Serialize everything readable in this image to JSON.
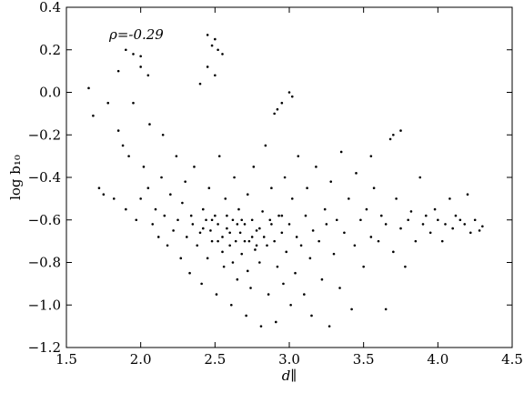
{
  "chart_data": {
    "type": "scatter",
    "annotation": "ρ=-0.29",
    "x_label": "d∥",
    "y_label": "log b₁₀",
    "color": "#000000",
    "xlim": [
      1.5,
      4.5
    ],
    "ylim": [
      -1.2,
      0.4
    ],
    "xticks": [
      1.5,
      {
        "value": 2,
        "label": "2.0"
      },
      2.5,
      {
        "value": 3,
        "label": "3.0"
      },
      3.5,
      {
        "value": 4,
        "label": "4.0"
      },
      4.5
    ],
    "yticks": [
      {
        "value": -1.2,
        "label": "−1.2"
      },
      {
        "value": -1,
        "label": "−1.0"
      },
      {
        "value": -0.8,
        "label": "−0.8"
      },
      {
        "value": -0.6,
        "label": "−0.6"
      },
      {
        "value": -0.4,
        "label": "−0.4"
      },
      {
        "value": -0.2,
        "label": "−0.2"
      },
      {
        "value": 0,
        "label": "0.0"
      },
      0.2,
      0.4
    ],
    "x": [
      1.65,
      1.95,
      2.0,
      2.45,
      2.48,
      2.5,
      2.52,
      2.55,
      2.45,
      2.5,
      2.4,
      1.85,
      1.9,
      2.0,
      2.05,
      3.0,
      2.95,
      2.9,
      3.02,
      2.92,
      1.68,
      1.72,
      1.75,
      1.78,
      1.82,
      1.85,
      1.88,
      1.9,
      1.92,
      1.95,
      1.97,
      2.0,
      2.02,
      2.05,
      2.06,
      2.08,
      2.1,
      2.12,
      2.14,
      2.15,
      2.16,
      2.18,
      2.2,
      2.22,
      2.24,
      2.25,
      2.27,
      2.28,
      2.3,
      2.31,
      2.33,
      2.34,
      2.35,
      2.36,
      2.38,
      2.4,
      2.41,
      2.42,
      2.44,
      2.45,
      2.46,
      2.47,
      2.48,
      2.5,
      2.51,
      2.52,
      2.53,
      2.55,
      2.56,
      2.57,
      2.58,
      2.6,
      2.61,
      2.62,
      2.63,
      2.64,
      2.65,
      2.66,
      2.67,
      2.68,
      2.7,
      2.71,
      2.72,
      2.73,
      2.74,
      2.75,
      2.76,
      2.77,
      2.78,
      2.8,
      2.81,
      2.82,
      2.83,
      2.84,
      2.85,
      2.86,
      2.87,
      2.88,
      2.9,
      2.91,
      2.92,
      2.93,
      2.95,
      2.96,
      2.97,
      2.98,
      3.0,
      3.01,
      3.02,
      3.04,
      3.05,
      3.06,
      3.08,
      3.1,
      3.11,
      3.12,
      3.14,
      3.15,
      3.16,
      3.18,
      3.2,
      3.22,
      3.24,
      3.25,
      3.27,
      3.28,
      3.3,
      3.32,
      3.34,
      3.35,
      3.37,
      3.4,
      3.42,
      3.44,
      3.45,
      3.48,
      3.5,
      3.52,
      3.55,
      3.57,
      3.6,
      3.62,
      3.65,
      3.68,
      3.7,
      3.72,
      3.75,
      3.78,
      3.8,
      3.82,
      3.85,
      3.88,
      3.9,
      3.92,
      3.95,
      3.98,
      4.0,
      4.03,
      4.05,
      4.08,
      4.1,
      4.12,
      4.15,
      4.18,
      4.2,
      4.22,
      4.25,
      4.28,
      4.3,
      3.7,
      3.75,
      3.65,
      3.55,
      2.55,
      2.6,
      2.65,
      2.7,
      2.75,
      2.8,
      2.58,
      2.68,
      2.78,
      2.62,
      2.72,
      2.48,
      2.42,
      2.52,
      2.88,
      2.95
    ],
    "values": [
      0.02,
      0.18,
      0.17,
      0.27,
      0.22,
      0.25,
      0.2,
      0.18,
      0.12,
      0.08,
      0.04,
      0.1,
      0.2,
      0.12,
      0.08,
      0.0,
      -0.05,
      -0.1,
      -0.02,
      -0.08,
      -0.11,
      -0.45,
      -0.48,
      -0.05,
      -0.5,
      -0.18,
      -0.25,
      -0.55,
      -0.3,
      -0.05,
      -0.6,
      -0.5,
      -0.35,
      -0.45,
      -0.15,
      -0.62,
      -0.55,
      -0.68,
      -0.4,
      -0.2,
      -0.58,
      -0.72,
      -0.48,
      -0.65,
      -0.3,
      -0.6,
      -0.78,
      -0.52,
      -0.42,
      -0.68,
      -0.85,
      -0.58,
      -0.62,
      -0.35,
      -0.72,
      -0.66,
      -0.9,
      -0.55,
      -0.6,
      -0.78,
      -0.45,
      -0.65,
      -0.7,
      -0.58,
      -0.95,
      -0.62,
      -0.3,
      -0.68,
      -0.82,
      -0.5,
      -0.64,
      -0.72,
      -1.0,
      -0.6,
      -0.4,
      -0.7,
      -0.88,
      -0.55,
      -0.66,
      -0.76,
      -0.62,
      -1.05,
      -0.48,
      -0.7,
      -0.92,
      -0.6,
      -0.35,
      -0.74,
      -0.65,
      -0.8,
      -1.1,
      -0.56,
      -0.68,
      -0.25,
      -0.72,
      -0.95,
      -0.6,
      -0.45,
      -0.7,
      -1.08,
      -0.82,
      -0.58,
      -0.66,
      -0.9,
      -0.4,
      -0.75,
      -0.62,
      -1.0,
      -0.5,
      -0.85,
      -0.68,
      -0.3,
      -0.72,
      -0.95,
      -0.58,
      -0.45,
      -0.78,
      -1.05,
      -0.65,
      -0.35,
      -0.7,
      -0.88,
      -0.55,
      -0.62,
      -1.1,
      -0.42,
      -0.76,
      -0.6,
      -0.92,
      -0.28,
      -0.66,
      -0.5,
      -1.02,
      -0.72,
      -0.38,
      -0.6,
      -0.82,
      -0.55,
      -0.68,
      -0.45,
      -0.7,
      -0.58,
      -0.62,
      -0.22,
      -0.75,
      -0.5,
      -0.64,
      -0.82,
      -0.6,
      -0.56,
      -0.7,
      -0.4,
      -0.62,
      -0.58,
      -0.66,
      -0.55,
      -0.6,
      -0.7,
      -0.62,
      -0.5,
      -0.64,
      -0.58,
      -0.6,
      -0.62,
      -0.48,
      -0.66,
      -0.6,
      -0.65,
      -0.63,
      -0.2,
      -0.18,
      -1.02,
      -0.3,
      -0.75,
      -0.66,
      -0.62,
      -0.7,
      -0.68,
      -0.64,
      -0.58,
      -0.6,
      -0.72,
      -0.8,
      -0.84,
      -0.6,
      -0.64,
      -0.7,
      -0.62,
      -0.58
    ]
  }
}
